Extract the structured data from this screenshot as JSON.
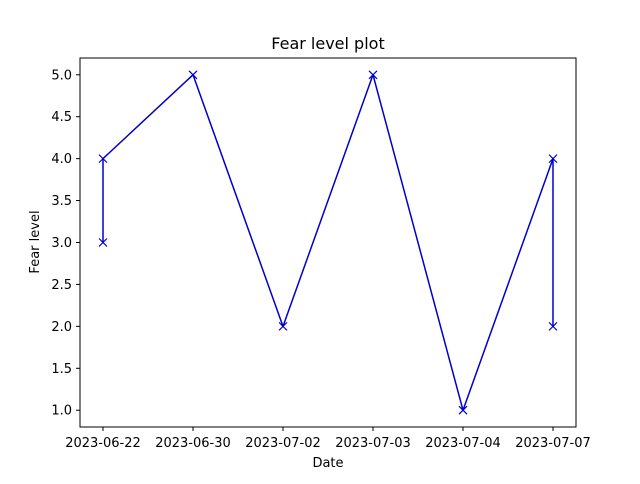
{
  "chart_data": {
    "type": "line",
    "title": "Fear level plot",
    "xlabel": "Date",
    "ylabel": "Fear level",
    "categories": [
      "2023-06-22",
      "2023-06-30",
      "2023-07-02",
      "2023-07-03",
      "2023-07-04",
      "2023-07-07"
    ],
    "points": [
      {
        "x": "2023-06-22",
        "y": 3.0
      },
      {
        "x": "2023-06-22",
        "y": 4.0
      },
      {
        "x": "2023-06-30",
        "y": 5.0
      },
      {
        "x": "2023-07-02",
        "y": 2.0
      },
      {
        "x": "2023-07-03",
        "y": 5.0
      },
      {
        "x": "2023-07-04",
        "y": 1.0
      },
      {
        "x": "2023-07-07",
        "y": 4.0
      },
      {
        "x": "2023-07-07",
        "y": 2.0
      }
    ],
    "yticks": [
      "1.0",
      "1.5",
      "2.0",
      "2.5",
      "3.0",
      "3.5",
      "4.0",
      "4.5",
      "5.0"
    ],
    "ylim": [
      0.8,
      5.2
    ],
    "marker": "x",
    "line_color": "#0000cc",
    "grid": false,
    "legend": false
  }
}
